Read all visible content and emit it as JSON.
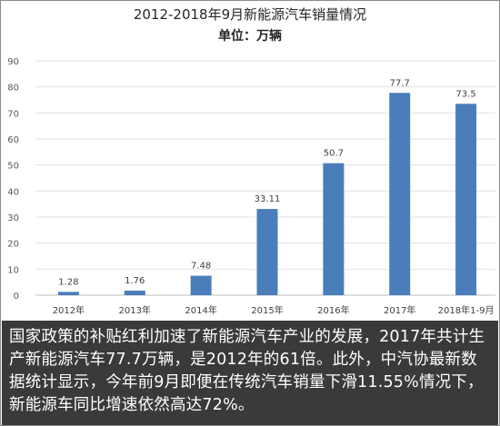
{
  "chart_data": {
    "type": "bar",
    "title": "2012-2018年9月新能源汽车销量情况",
    "subtitle": "单位：万辆",
    "categories": [
      "2012年",
      "2013年",
      "2014年",
      "2015年",
      "2016年",
      "2017年",
      "2018年1-9月"
    ],
    "values": [
      1.28,
      1.76,
      7.48,
      33.11,
      50.7,
      77.7,
      73.5
    ],
    "value_labels": [
      "1.28",
      "1.76",
      "7.48",
      "33.11",
      "50.7",
      "77.7",
      "73.5"
    ],
    "ylim": [
      0,
      90
    ],
    "yticks": [
      0,
      10,
      20,
      30,
      40,
      50,
      60,
      70,
      80,
      90
    ],
    "grid": true,
    "bar_color": "#4a7ebb"
  },
  "caption": {
    "text": "国家政策的补贴红利加速了新能源汽车产业的发展，2017年共计生产新能源汽车77.7万辆，是2012年的61倍。此外，中汽协最新数据统计显示，今年前9月即便在传统汽车销量下滑11.55%情况下，新能源车同比增速依然高达72%。"
  }
}
